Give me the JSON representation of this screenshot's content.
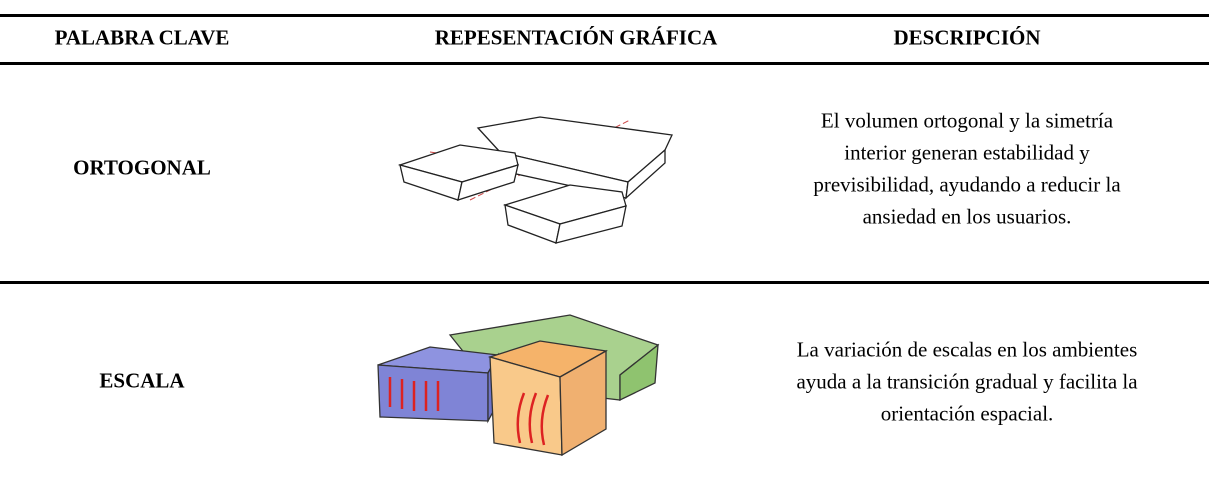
{
  "table": {
    "headers": [
      "PALABRA CLAVE",
      "REPESENTACIÓN GRÁFICA",
      "DESCRIPCIÓN"
    ],
    "rows": [
      {
        "keyword": "ORTOGONAL",
        "description": [
          "El volumen ortogonal y la simetría",
          "interior generan estabilidad y",
          "previsibilidad, ayudando a reducir la",
          "ansiedad en los usuarios."
        ]
      },
      {
        "keyword": "ESCALA",
        "description": [
          "La variación de escalas en los ambientes",
          "ayuda a la transición gradual y facilita la",
          "orientación espacial."
        ]
      }
    ]
  }
}
